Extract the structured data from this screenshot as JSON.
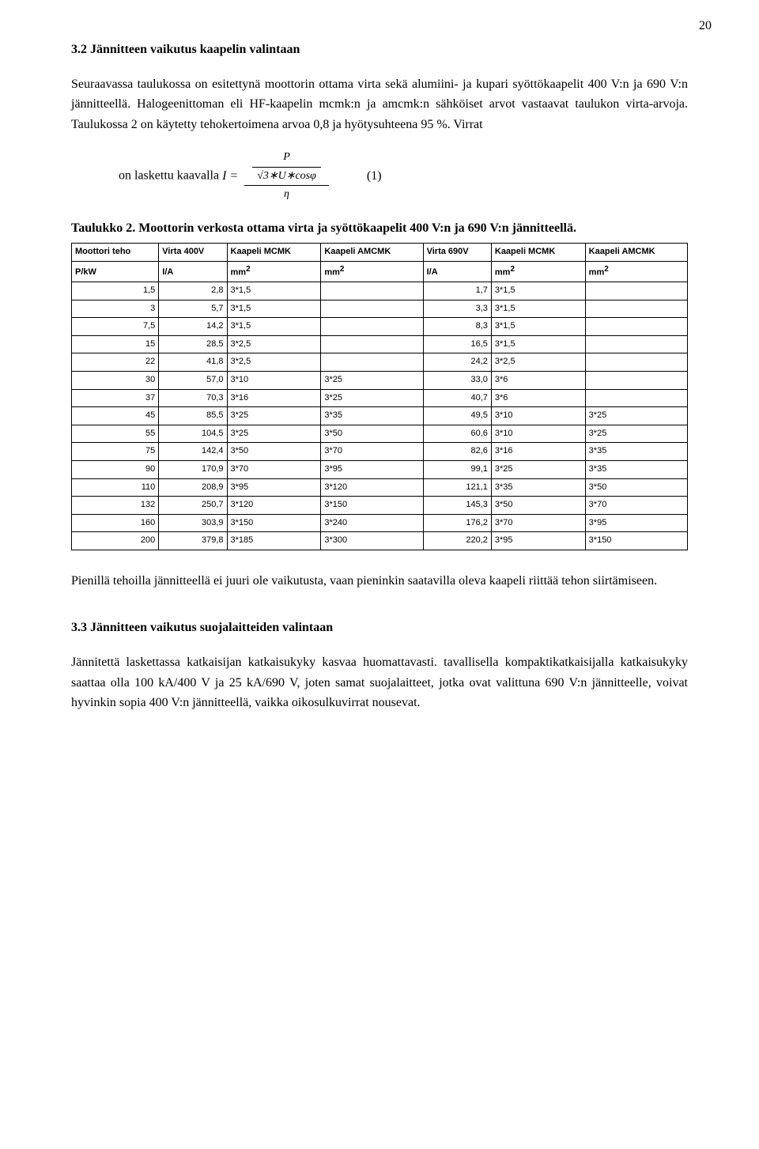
{
  "page_number": "20",
  "section32": {
    "heading": "3.2  Jännitteen vaikutus kaapelin valintaan",
    "p1": "Seuraavassa taulukossa on esitettynä moottorin ottama virta sekä alumiini- ja kupari syöttökaapelit 400 V:n ja 690 V:n jännitteellä. Halogeenittoman eli HF-kaapelin mcmk:n ja amcmk:n sähköiset arvot vastaavat taulukon virta-arvoja. Taulukossa 2 on käytetty tehokertoimena arvoa 0,8 ja hyötysuhteena 95 %. Virrat",
    "formula_lead": "on laskettu kaavalla ",
    "formula_I": "I =",
    "formula_num_P": "P",
    "formula_den": "√3∗U∗cosφ",
    "formula_over_eta": "η",
    "formula_eqno": "(1)"
  },
  "table": {
    "caption": "Taulukko 2. Moottorin verkosta ottama virta ja syöttökaapelit 400 V:n ja 690 V:n jännitteellä.",
    "headers": [
      "Moottori teho",
      "Virta 400V",
      "Kaapeli MCMK",
      "Kaapeli AMCMK",
      "Virta 690V",
      "Kaapeli MCMK",
      "Kaapeli AMCMK"
    ],
    "units": [
      "P/kW",
      "I/A",
      "mm",
      "mm",
      "I/A",
      "mm",
      "mm"
    ],
    "rows": [
      [
        "1,5",
        "2,8",
        "3*1,5",
        "",
        "1,7",
        "3*1,5",
        ""
      ],
      [
        "3",
        "5,7",
        "3*1,5",
        "",
        "3,3",
        "3*1,5",
        ""
      ],
      [
        "7,5",
        "14,2",
        "3*1,5",
        "",
        "8,3",
        "3*1,5",
        ""
      ],
      [
        "15",
        "28,5",
        "3*2,5",
        "",
        "16,5",
        "3*1,5",
        ""
      ],
      [
        "22",
        "41,8",
        "3*2,5",
        "",
        "24,2",
        "3*2,5",
        ""
      ],
      [
        "30",
        "57,0",
        "3*10",
        "3*25",
        "33,0",
        "3*6",
        ""
      ],
      [
        "37",
        "70,3",
        "3*16",
        "3*25",
        "40,7",
        "3*6",
        ""
      ],
      [
        "45",
        "85,5",
        "3*25",
        "3*35",
        "49,5",
        "3*10",
        "3*25"
      ],
      [
        "55",
        "104,5",
        "3*25",
        "3*50",
        "60,6",
        "3*10",
        "3*25"
      ],
      [
        "75",
        "142,4",
        "3*50",
        "3*70",
        "82,6",
        "3*16",
        "3*35"
      ],
      [
        "90",
        "170,9",
        "3*70",
        "3*95",
        "99,1",
        "3*25",
        "3*35"
      ],
      [
        "110",
        "208,9",
        "3*95",
        "3*120",
        "121,1",
        "3*35",
        "3*50"
      ],
      [
        "132",
        "250,7",
        "3*120",
        "3*150",
        "145,3",
        "3*50",
        "3*70"
      ],
      [
        "160",
        "303,9",
        "3*150",
        "3*240",
        "176,2",
        "3*70",
        "3*95"
      ],
      [
        "200",
        "379,8",
        "3*185",
        "3*300",
        "220,2",
        "3*95",
        "3*150"
      ]
    ]
  },
  "after_table_p": "Pienillä tehoilla jännitteellä ei juuri ole vaikutusta, vaan pieninkin saatavilla oleva kaapeli riittää tehon siirtämiseen.",
  "section33": {
    "heading": "3.3 Jännitteen vaikutus suojalaitteiden valintaan",
    "p1": "Jännitettä laskettassa katkaisijan katkaisukyky kasvaa huomattavasti. tavallisella kompaktikatkaisijalla katkaisukyky saattaa olla 100 kA/400 V ja 25 kA/690 V, joten samat suojalaitteet, jotka ovat valittuna 690 V:n jännitteelle, voivat hyvinkin sopia 400 V:n jännitteellä, vaikka oikosulkuvirrat nousevat."
  },
  "style": {
    "body_font": "Times New Roman",
    "body_size_pt": 12,
    "table_font": "Arial",
    "table_size_pt": 8.5,
    "text_color": "#000000",
    "background": "#ffffff",
    "border_color": "#000000",
    "col_align": [
      "right",
      "right",
      "left",
      "left",
      "right",
      "left",
      "left"
    ]
  }
}
